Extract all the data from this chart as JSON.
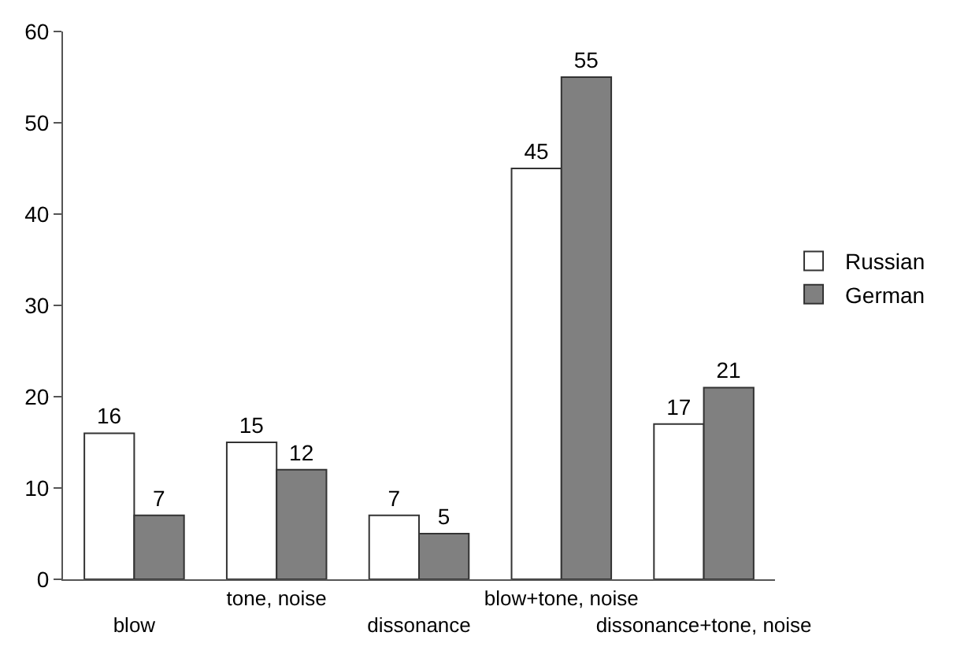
{
  "chart_data": {
    "type": "bar",
    "categories": [
      "blow",
      "tone, noise",
      "dissonance",
      "blow+tone, noise",
      "dissonance+tone, noise"
    ],
    "series": [
      {
        "name": "Russian",
        "color": "#ffffff",
        "values": [
          16,
          15,
          7,
          45,
          17
        ]
      },
      {
        "name": "German",
        "color": "#808080",
        "values": [
          7,
          12,
          5,
          55,
          21
        ]
      }
    ],
    "ylim": [
      0,
      60
    ],
    "yticks": [
      0,
      10,
      20,
      30,
      40,
      50,
      60
    ],
    "legend": "right",
    "data_labels": true
  }
}
